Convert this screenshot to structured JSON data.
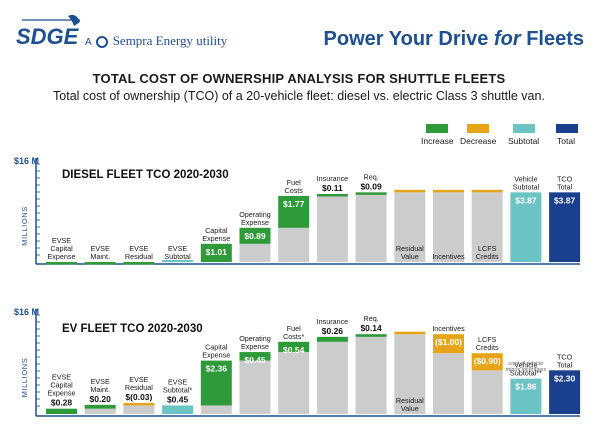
{
  "header": {
    "logo_text": "SDGE",
    "brand_prefix": "A",
    "brand_name": "Sempra Energy utility",
    "tagline_main": "Power Your Drive ",
    "tagline_for": "for",
    "tagline_end": " Fleets"
  },
  "title": "TOTAL COST OF OWNERSHIP ANALYSIS FOR SHUTTLE FLEETS",
  "subtitle": "Total cost of ownership (TCO) of a 20-vehicle fleet: diesel vs. electric Class 3 shuttle van.",
  "legend": [
    {
      "label": "Increase",
      "color": "#2e9a3a"
    },
    {
      "label": "Decrease",
      "color": "#e8a417"
    },
    {
      "label": "Subtotal",
      "color": "#6cc3c3"
    },
    {
      "label": "Total",
      "color": "#1b3f8f"
    }
  ],
  "colors": {
    "base": "#cccccc",
    "increase": "#2e9a3a",
    "decrease": "#e8a417",
    "subtotal": "#6cc3c3",
    "total": "#1b3f8f"
  },
  "chart_data": [
    {
      "type": "bar",
      "subtype": "waterfall",
      "title": "DIESEL FLEET TCO 2020-2030",
      "ylabel": "MILLIONS",
      "ytick": "$16 M",
      "ylim": [
        0,
        16
      ],
      "categories": [
        "EVSE Capital Expense",
        "EVSE Maint.",
        "EVSE Residual",
        "EVSE Subtotal",
        "Capital Expense",
        "Operating Expense",
        "Fuel Costs",
        "Insurance",
        "Req.",
        "Residual Value",
        "Incentives",
        "LCFS Credits",
        "Vehicle Subtotal",
        "TCO Total"
      ],
      "bars": [
        {
          "label": "EVSE\nCapital\nExpense",
          "kind": "increase",
          "base": 0,
          "value": 0,
          "value_text": "",
          "value_inside": false
        },
        {
          "label": "EVSE\nMaint.",
          "kind": "increase",
          "base": 0,
          "value": 0,
          "value_text": "",
          "value_inside": false
        },
        {
          "label": "EVSE\nResidual",
          "kind": "increase",
          "base": 0,
          "value": 0,
          "value_text": "",
          "value_inside": false
        },
        {
          "label": "EVSE\nSubtotal",
          "kind": "subtotal",
          "base": 0,
          "value": 0,
          "value_text": "",
          "value_inside": false
        },
        {
          "label": "Capital\nExpense",
          "kind": "increase",
          "base": 0,
          "value": 1.01,
          "value_text": "$1.01",
          "value_inside": true
        },
        {
          "label": "Operating\nExpense",
          "kind": "increase",
          "base": 1.01,
          "value": 0.89,
          "value_text": "$0.89",
          "value_inside": true
        },
        {
          "label": "Fuel\nCosts",
          "kind": "increase",
          "base": 1.9,
          "value": 1.77,
          "value_text": "$1.77",
          "value_inside": true
        },
        {
          "label": "Insurance",
          "kind": "increase",
          "base": 3.67,
          "value": 0.11,
          "value_text": "$0.11",
          "value_inside": false
        },
        {
          "label": "Req.",
          "kind": "increase",
          "base": 3.78,
          "value": 0.09,
          "value_text": "$0.09",
          "value_inside": false
        },
        {
          "label": "Residual\nValue",
          "kind": "decrease",
          "base": 3.87,
          "value": 0,
          "value_text": "",
          "value_inside": false
        },
        {
          "label": "Incentives",
          "kind": "decrease",
          "base": 3.87,
          "value": 0,
          "value_text": "",
          "value_inside": false
        },
        {
          "label": "LCFS\nCredits",
          "kind": "decrease",
          "base": 3.87,
          "value": 0,
          "value_text": "",
          "value_inside": false
        },
        {
          "label": "Vehicle\nSubtotal",
          "kind": "subtotal",
          "base": 0,
          "value": 3.87,
          "value_text": "$3.87",
          "value_inside": true
        },
        {
          "label": "TCO\nTotal",
          "kind": "total",
          "base": 0,
          "value": 3.87,
          "value_text": "$3.87",
          "value_inside": true
        }
      ]
    },
    {
      "type": "bar",
      "subtype": "waterfall",
      "title": "EV FLEET TCO 2020-2030",
      "ylabel": "MILLIONS",
      "ytick": "$16 M",
      "ylim": [
        0,
        16
      ],
      "categories": [
        "EVSE Capital Expense",
        "EVSE Maint.",
        "EVSE Residual",
        "EVSE Subtotal*",
        "Capital Expense",
        "Operating Expense",
        "Fuel Costs*",
        "Insurance",
        "Req.",
        "Residual Value",
        "Incentives",
        "LCFS Credits",
        "Vehicle Subtotal**",
        "TCO Total"
      ],
      "footnote": "cost of vehicle minus incentives",
      "bars": [
        {
          "label": "EVSE\nCapital\nExpense",
          "kind": "increase",
          "base": 0,
          "value": 0.28,
          "value_text": "$0.28",
          "value_inside": false
        },
        {
          "label": "EVSE\nMaint.",
          "kind": "increase",
          "base": 0.28,
          "value": 0.2,
          "value_text": "$0.20",
          "value_inside": false
        },
        {
          "label": "EVSE\nResidual",
          "kind": "decrease",
          "base": 0.45,
          "value": 0.03,
          "value_text": "$(0.03)",
          "value_inside": false
        },
        {
          "label": "EVSE\nSubtotal*",
          "kind": "subtotal",
          "base": 0,
          "value": 0.45,
          "value_text": "$0.45",
          "value_inside": false
        },
        {
          "label": "Capital\nExpense",
          "kind": "increase",
          "base": 0.45,
          "value": 2.36,
          "value_text": "$2.36",
          "value_inside": true
        },
        {
          "label": "Operating\nExpense",
          "kind": "increase",
          "base": 2.81,
          "value": 0.45,
          "value_text": "$0.45",
          "value_inside": true
        },
        {
          "label": "Fuel\nCosts*",
          "kind": "increase",
          "base": 3.26,
          "value": 0.54,
          "value_text": "$0.54",
          "value_inside": true
        },
        {
          "label": "Insurance",
          "kind": "increase",
          "base": 3.8,
          "value": 0.26,
          "value_text": "$0.26",
          "value_inside": false
        },
        {
          "label": "Req.",
          "kind": "increase",
          "base": 4.06,
          "value": 0.14,
          "value_text": "$0.14",
          "value_inside": false
        },
        {
          "label": "Residual\nValue",
          "kind": "decrease",
          "base": 4.2,
          "value": 0,
          "value_text": "",
          "value_inside": false
        },
        {
          "label": "Incentives",
          "kind": "decrease",
          "base": 3.2,
          "value": 1.0,
          "value_text": "($1.00)",
          "value_inside": true
        },
        {
          "label": "LCFS\nCredits",
          "kind": "decrease",
          "base": 2.3,
          "value": 0.9,
          "value_text": "($0.90)",
          "value_inside": true
        },
        {
          "label": "Vehicle\nSubtotal**",
          "kind": "subtotal",
          "base": 0,
          "value": 1.86,
          "value_text": "$1.86",
          "value_inside": true
        },
        {
          "label": "TCO\nTotal",
          "kind": "total",
          "base": 0,
          "value": 2.3,
          "value_text": "$2.30",
          "value_inside": true
        }
      ]
    }
  ]
}
